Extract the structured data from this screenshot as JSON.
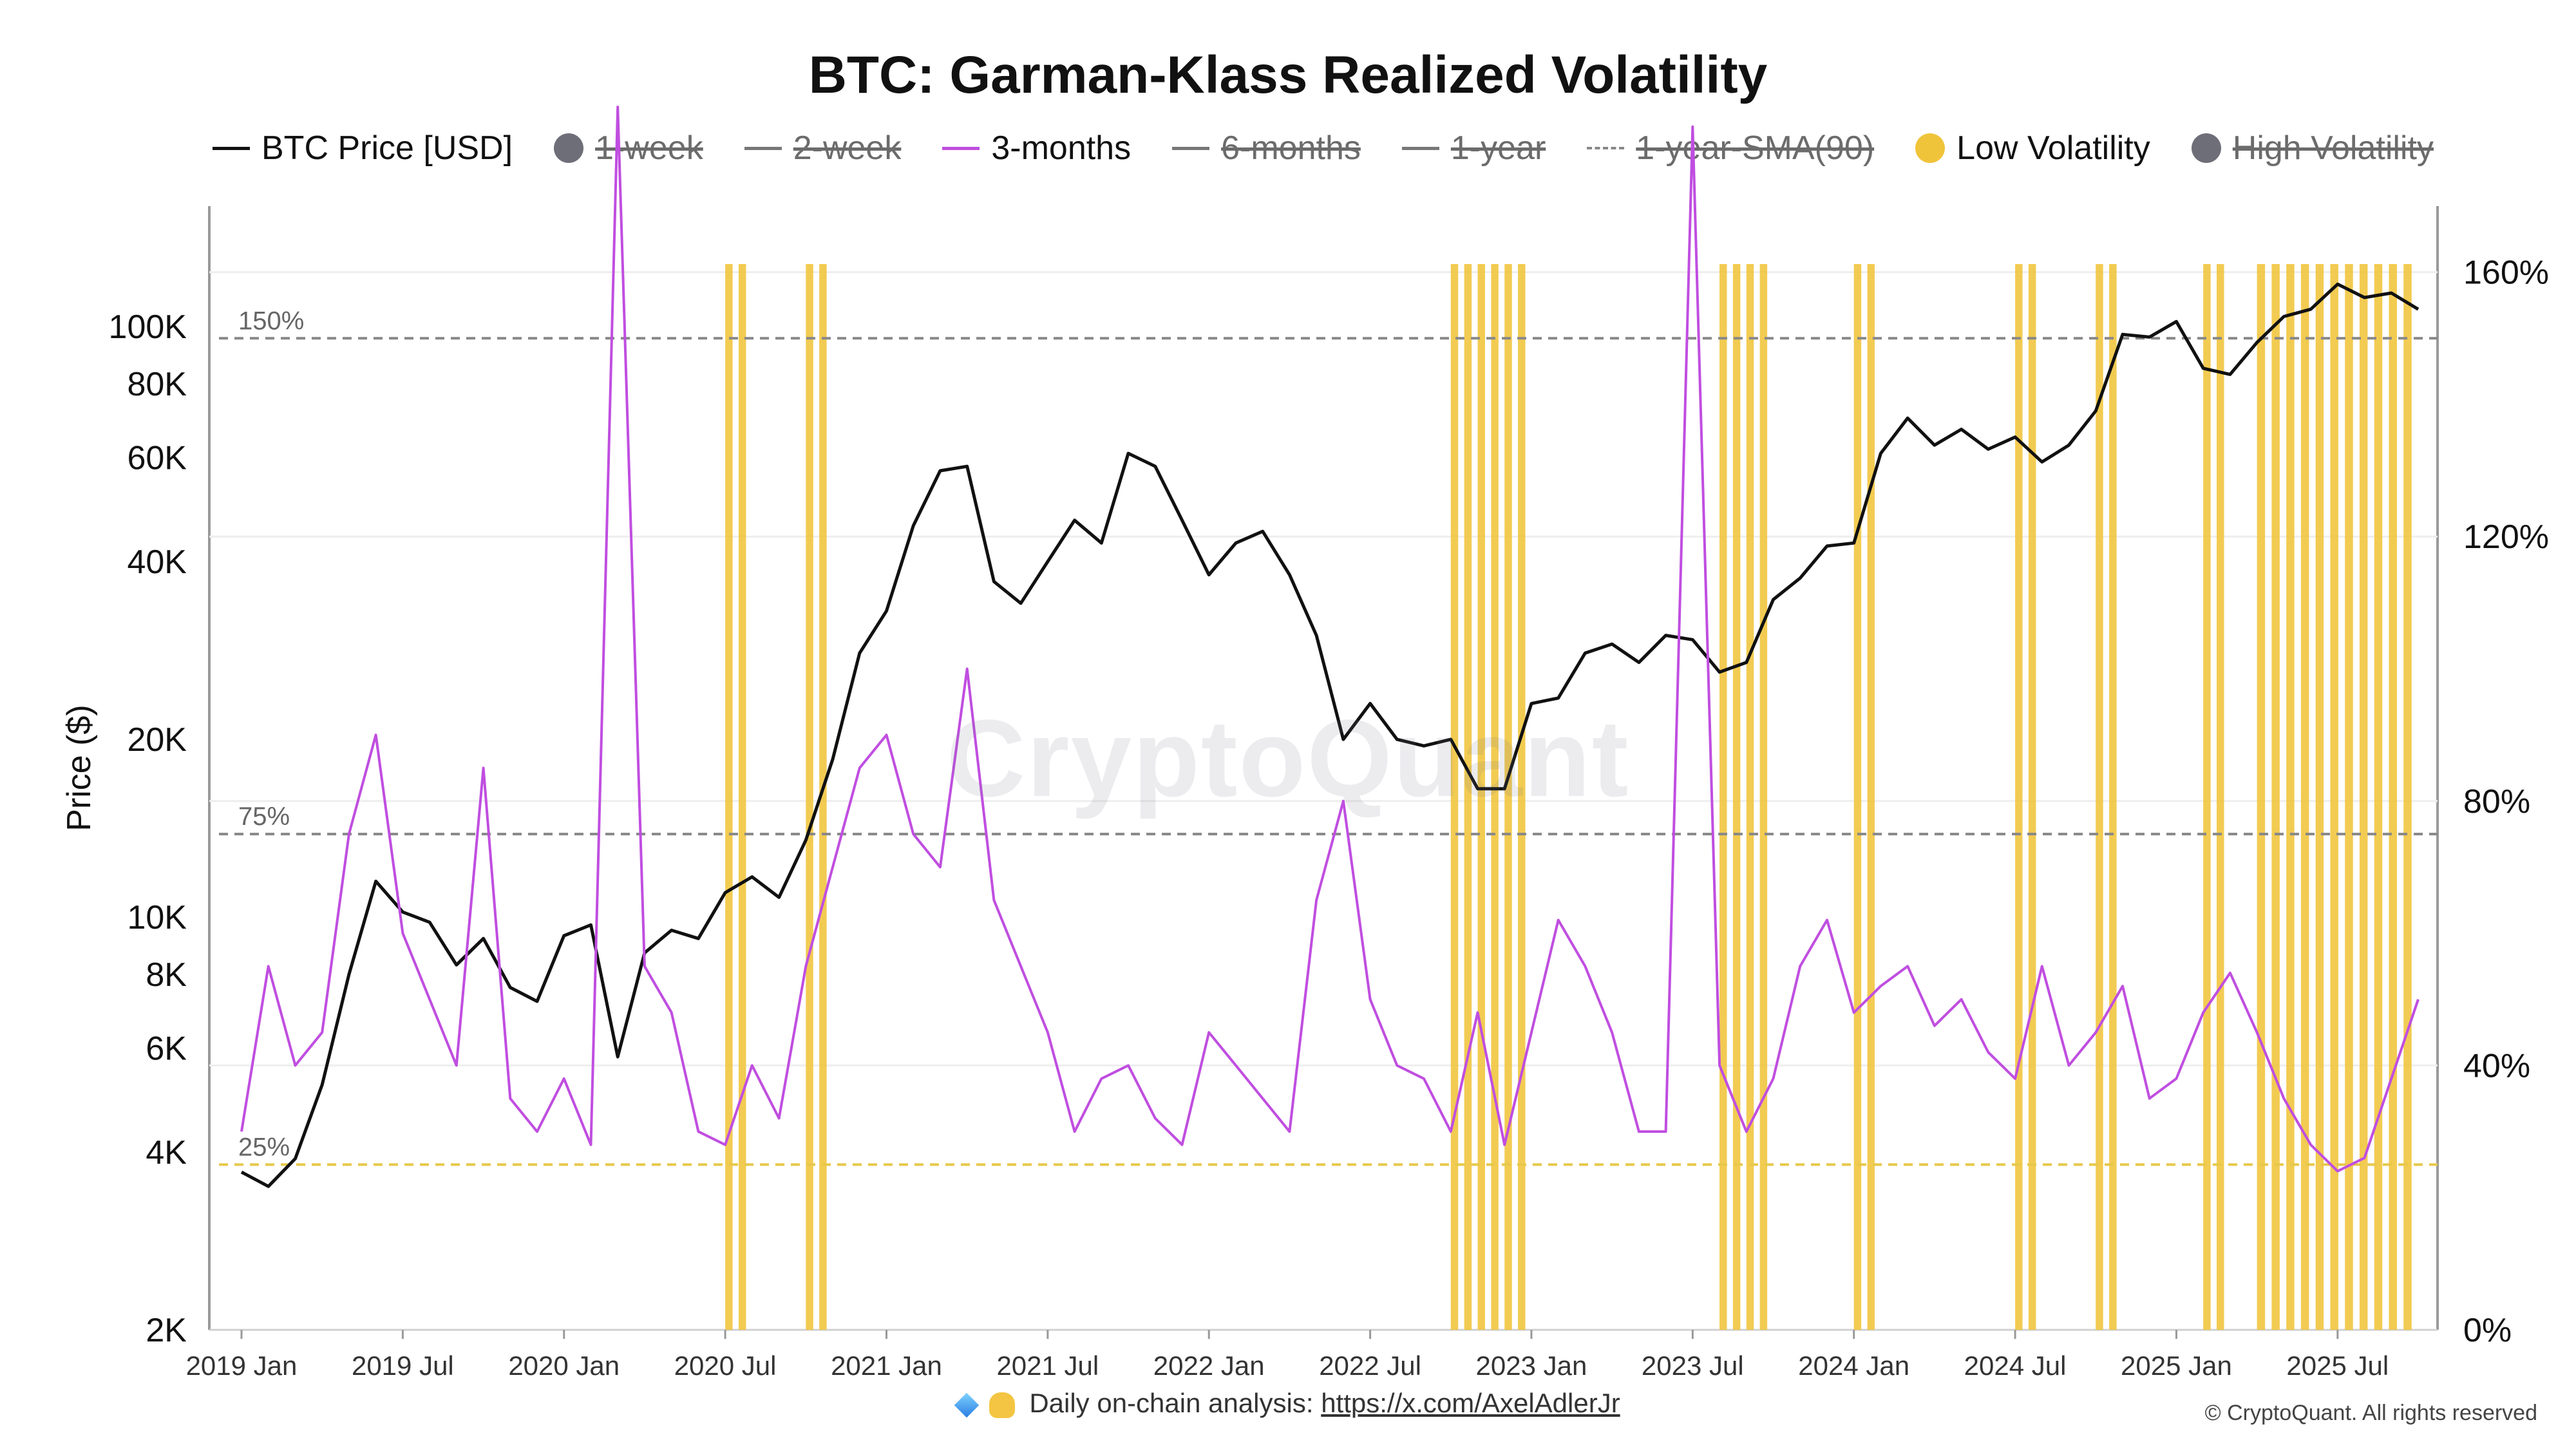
{
  "title": "BTC: Garman-Klass Realized Volatility",
  "legend": [
    {
      "label": "BTC Price [USD]",
      "swatch": "line",
      "color": "#111111",
      "enabled": true
    },
    {
      "label": "1-week",
      "swatch": "dot",
      "color": "#6e6e78",
      "enabled": false
    },
    {
      "label": "2-week",
      "swatch": "line",
      "color": "#777777",
      "enabled": false
    },
    {
      "label": "3-months",
      "swatch": "line",
      "color": "#c04ee0",
      "enabled": true
    },
    {
      "label": "6-months",
      "swatch": "line",
      "color": "#777777",
      "enabled": false
    },
    {
      "label": "1-year",
      "swatch": "line",
      "color": "#777777",
      "enabled": false
    },
    {
      "label": "1-year-SMA(90)",
      "swatch": "dashed",
      "color": "#888888",
      "enabled": false
    },
    {
      "label": "Low Volatility",
      "swatch": "dot",
      "color": "#f0c43a",
      "enabled": true
    },
    {
      "label": "High Volatility",
      "swatch": "dot",
      "color": "#6e6e78",
      "enabled": false
    }
  ],
  "watermark": "CryptoQuant",
  "footer": {
    "text": "Daily on-chain analysis:",
    "link": "https://x.com/AxelAdlerJr"
  },
  "copyright": "© CryptoQuant. All rights reserved",
  "colors": {
    "price": "#111111",
    "vol": "#c04ee0",
    "low_vol": "#f0c43a",
    "threshold": "#888888",
    "low_threshold": "#e6c84a"
  },
  "chart_data": {
    "type": "line",
    "x_ticks": [
      "2019 Jan",
      "2019 Jul",
      "2020 Jan",
      "2020 Jul",
      "2021 Jan",
      "2021 Jul",
      "2022 Jan",
      "2022 Jul",
      "2023 Jan",
      "2023 Jul",
      "2024 Jan",
      "2024 Jul",
      "2025 Jan",
      "2025 Jul"
    ],
    "left_axis": {
      "label": "Price ($)",
      "scale": "log",
      "range": [
        2000,
        160000
      ],
      "ticks": [
        2000,
        4000,
        6000,
        8000,
        10000,
        20000,
        40000,
        60000,
        80000,
        100000
      ],
      "tick_labels": [
        "2K",
        "4K",
        "6K",
        "8K",
        "10K",
        "20K",
        "40K",
        "60K",
        "80K",
        "100K"
      ]
    },
    "right_axis": {
      "label": "",
      "range": [
        0,
        170
      ],
      "ticks": [
        0,
        40,
        80,
        120,
        160
      ],
      "tick_labels": [
        "0%",
        "40%",
        "80%",
        "120%",
        "160%"
      ]
    },
    "thresholds": [
      {
        "label": "150%",
        "value": 150
      },
      {
        "label": "75%",
        "value": 75
      },
      {
        "label": "25%",
        "value": 25
      }
    ],
    "series": [
      {
        "name": "BTC Price [USD]",
        "axis": "left",
        "x": [
          "2019-01",
          "2019-02",
          "2019-03",
          "2019-04",
          "2019-05",
          "2019-06",
          "2019-07",
          "2019-08",
          "2019-09",
          "2019-10",
          "2019-11",
          "2019-12",
          "2020-01",
          "2020-02",
          "2020-03",
          "2020-04",
          "2020-05",
          "2020-06",
          "2020-07",
          "2020-08",
          "2020-09",
          "2020-10",
          "2020-11",
          "2020-12",
          "2021-01",
          "2021-02",
          "2021-03",
          "2021-04",
          "2021-05",
          "2021-06",
          "2021-07",
          "2021-08",
          "2021-09",
          "2021-10",
          "2021-11",
          "2021-12",
          "2022-01",
          "2022-02",
          "2022-03",
          "2022-04",
          "2022-05",
          "2022-06",
          "2022-07",
          "2022-08",
          "2022-09",
          "2022-10",
          "2022-11",
          "2022-12",
          "2023-01",
          "2023-02",
          "2023-03",
          "2023-04",
          "2023-05",
          "2023-06",
          "2023-07",
          "2023-08",
          "2023-09",
          "2023-10",
          "2023-11",
          "2023-12",
          "2024-01",
          "2024-02",
          "2024-03",
          "2024-04",
          "2024-05",
          "2024-06",
          "2024-07",
          "2024-08",
          "2024-09",
          "2024-10",
          "2024-11",
          "2024-12",
          "2025-01",
          "2025-02",
          "2025-03",
          "2025-04",
          "2025-05",
          "2025-06",
          "2025-07",
          "2025-08",
          "2025-09",
          "2025-10"
        ],
        "values": [
          3700,
          3500,
          3900,
          5200,
          8000,
          11500,
          10200,
          9800,
          8300,
          9200,
          7600,
          7200,
          9300,
          9700,
          5800,
          8700,
          9500,
          9200,
          11000,
          11700,
          10800,
          13500,
          18500,
          28000,
          33000,
          46000,
          57000,
          58000,
          37000,
          34000,
          40000,
          47000,
          43000,
          61000,
          58000,
          47000,
          38000,
          43000,
          45000,
          38000,
          30000,
          20000,
          23000,
          20000,
          19500,
          20000,
          16500,
          16500,
          23000,
          23500,
          28000,
          29000,
          27000,
          30000,
          29500,
          26000,
          27000,
          34500,
          37500,
          42500,
          43000,
          61000,
          70000,
          63000,
          67000,
          62000,
          65000,
          59000,
          63000,
          72000,
          97000,
          96000,
          102000,
          85000,
          83000,
          94000,
          104000,
          107000,
          118000,
          112000,
          114000,
          107000
        ]
      },
      {
        "name": "3-months",
        "axis": "right",
        "x": [
          "2019-01",
          "2019-02",
          "2019-03",
          "2019-04",
          "2019-05",
          "2019-06",
          "2019-07",
          "2019-08",
          "2019-09",
          "2019-10",
          "2019-11",
          "2019-12",
          "2020-01",
          "2020-02",
          "2020-03",
          "2020-04",
          "2020-05",
          "2020-06",
          "2020-07",
          "2020-08",
          "2020-09",
          "2020-10",
          "2020-11",
          "2020-12",
          "2021-01",
          "2021-02",
          "2021-03",
          "2021-04",
          "2021-05",
          "2021-06",
          "2021-07",
          "2021-08",
          "2021-09",
          "2021-10",
          "2021-11",
          "2021-12",
          "2022-01",
          "2022-02",
          "2022-03",
          "2022-04",
          "2022-05",
          "2022-06",
          "2022-07",
          "2022-08",
          "2022-09",
          "2022-10",
          "2022-11",
          "2022-12",
          "2023-01",
          "2023-02",
          "2023-03",
          "2023-04",
          "2023-05",
          "2023-06",
          "2023-07",
          "2023-08",
          "2023-09",
          "2023-10",
          "2023-11",
          "2023-12",
          "2024-01",
          "2024-02",
          "2024-03",
          "2024-04",
          "2024-05",
          "2024-06",
          "2024-07",
          "2024-08",
          "2024-09",
          "2024-10",
          "2024-11",
          "2024-12",
          "2025-01",
          "2025-02",
          "2025-03",
          "2025-04",
          "2025-05",
          "2025-06",
          "2025-07",
          "2025-08",
          "2025-09",
          "2025-10"
        ],
        "values": [
          30,
          55,
          40,
          45,
          75,
          90,
          60,
          50,
          40,
          85,
          35,
          30,
          38,
          28,
          185,
          55,
          48,
          30,
          28,
          40,
          32,
          55,
          70,
          85,
          90,
          75,
          70,
          100,
          65,
          55,
          45,
          30,
          38,
          40,
          32,
          28,
          45,
          40,
          35,
          30,
          65,
          80,
          50,
          40,
          38,
          30,
          48,
          28,
          45,
          62,
          55,
          45,
          30,
          30,
          182,
          40,
          30,
          38,
          55,
          62,
          48,
          52,
          55,
          46,
          50,
          42,
          38,
          55,
          40,
          45,
          52,
          35,
          38,
          48,
          54,
          45,
          35,
          28,
          24,
          26,
          38,
          50
        ]
      }
    ],
    "low_volatility_periods": [
      [
        "2020-07",
        "2020-08"
      ],
      [
        "2020-10",
        "2020-11"
      ],
      [
        "2022-10",
        "2023-01"
      ],
      [
        "2023-08",
        "2023-10"
      ],
      [
        "2024-01",
        "2024-02"
      ],
      [
        "2024-07",
        "2024-08"
      ],
      [
        "2024-10",
        "2024-11"
      ],
      [
        "2025-02",
        "2025-03"
      ],
      [
        "2025-04",
        "2025-10"
      ]
    ]
  }
}
